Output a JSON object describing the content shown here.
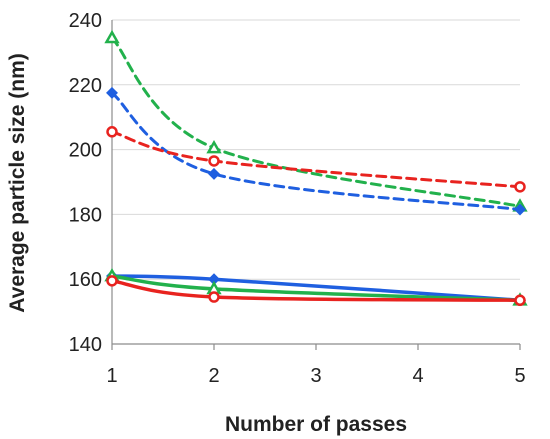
{
  "chart_data": {
    "type": "line",
    "xlabel": "Number of passes",
    "ylabel": "Average particle size (nm)",
    "xlim": [
      1,
      5
    ],
    "ylim": [
      140,
      240
    ],
    "x_ticks": [
      1,
      2,
      3,
      4,
      5
    ],
    "y_ticks": [
      140,
      160,
      180,
      200,
      220,
      240
    ],
    "grid": "horizontal",
    "legend": "none",
    "series": [
      {
        "color": "#22b14c",
        "marker": "triangle",
        "dash": "dashed",
        "x": [
          1,
          2,
          5
        ],
        "y": [
          234.5,
          200.5,
          182.5
        ]
      },
      {
        "color": "#1f5fe0",
        "marker": "diamond",
        "dash": "dashed",
        "x": [
          1,
          2,
          5
        ],
        "y": [
          217.5,
          192.5,
          181.5
        ]
      },
      {
        "color": "#e8231f",
        "marker": "circle",
        "dash": "dashed",
        "x": [
          1,
          2,
          5
        ],
        "y": [
          205.5,
          196.5,
          188.5
        ]
      },
      {
        "color": "#1f5fe0",
        "marker": "diamond",
        "dash": "solid",
        "x": [
          1,
          2,
          5
        ],
        "y": [
          161,
          160,
          153.5
        ]
      },
      {
        "color": "#22b14c",
        "marker": "triangle",
        "dash": "solid",
        "x": [
          1,
          2,
          5
        ],
        "y": [
          161,
          157,
          153.5
        ]
      },
      {
        "color": "#e8231f",
        "marker": "circle",
        "dash": "solid",
        "x": [
          1,
          2,
          5
        ],
        "y": [
          159.5,
          154.5,
          153.5
        ]
      }
    ]
  }
}
